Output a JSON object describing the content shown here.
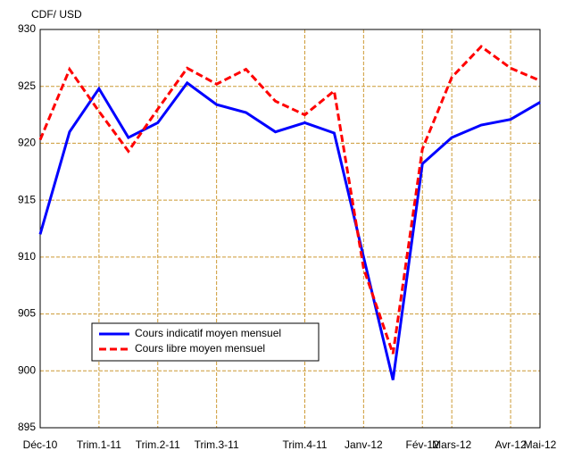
{
  "chart_data": {
    "type": "line",
    "ylabel": "CDF/ USD",
    "categories": [
      "Déc-10",
      null,
      "Trim.1-11",
      null,
      "Trim.2-11",
      null,
      "Trim.3-11",
      null,
      null,
      "Trim.4-11",
      null,
      "Janv-12",
      null,
      "Fév-12",
      "Mars-12",
      null,
      "Avr-12",
      "Mai-12"
    ],
    "series": [
      {
        "name": "Cours indicatif moyen mensuel",
        "color": "#0000ff",
        "dash": false,
        "values": [
          912,
          921,
          924.8,
          920.5,
          921.8,
          925.3,
          923.4,
          922.7,
          921,
          921.8,
          920.9,
          910,
          899.2,
          918.2,
          920.5,
          921.6,
          922.1,
          923.6
        ]
      },
      {
        "name": "Cours libre moyen mensuel",
        "color": "#ff0000",
        "dash": true,
        "values": [
          920.3,
          926.5,
          922.8,
          919.3,
          923,
          926.6,
          925.2,
          926.5,
          923.7,
          922.5,
          924.6,
          909,
          901.5,
          919.5,
          925.8,
          928.5,
          926.6,
          925.5
        ]
      }
    ],
    "ylim": [
      895,
      930
    ],
    "yticks": [
      895,
      900,
      905,
      910,
      915,
      920,
      925,
      930
    ],
    "grid": true,
    "grid_color": "#cc9933",
    "legend": "lower left"
  }
}
